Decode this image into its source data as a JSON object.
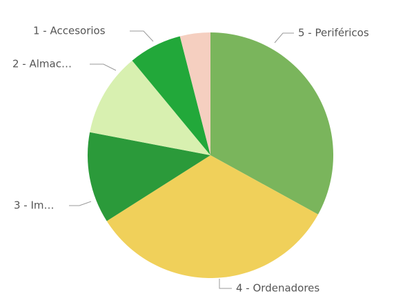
{
  "chart_data": {
    "type": "pie",
    "categories": [
      "5 - Periféricos",
      "4 - Ordenadores",
      "3 - Im…",
      "2 - Almac…",
      "1 - Accesorios",
      null
    ],
    "values": [
      33,
      33,
      12,
      11,
      7,
      4
    ],
    "colors": [
      "#7ab55c",
      "#f0d05a",
      "#2b9a3a",
      "#d8f0b0",
      "#22a83a",
      "#f5cfc0"
    ]
  }
}
